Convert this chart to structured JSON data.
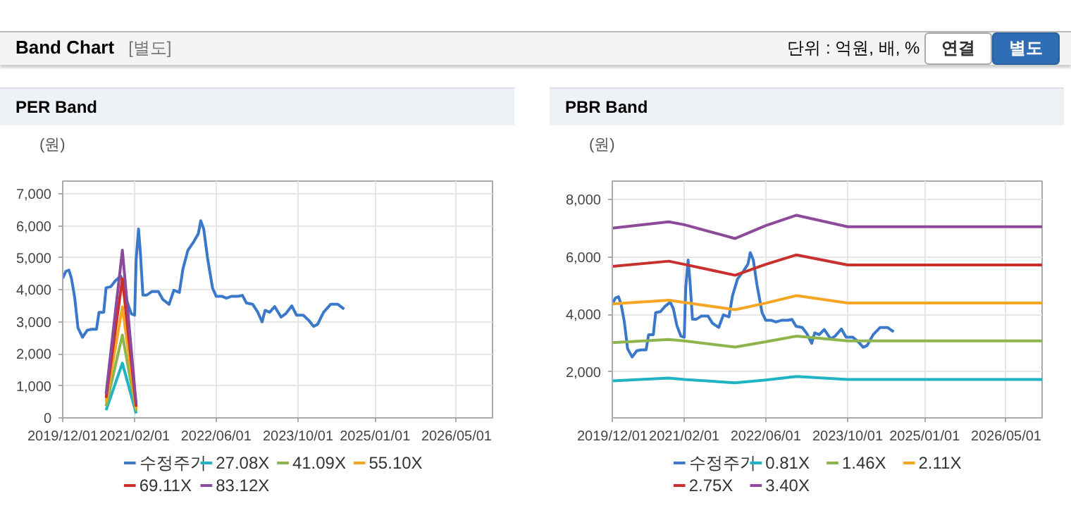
{
  "chart_data": [
    {
      "type": "other",
      "title": "Band Chart",
      "subtitle": "[별도]",
      "annotations": [
        "단위 : 억원, 배, %",
        "연결",
        "별도"
      ]
    },
    {
      "type": "line",
      "title": "PER Band",
      "ylabel": "(원)",
      "legend": "bottom",
      "grid": true,
      "xlim": [
        "2019-12-01",
        "2026-12-01"
      ],
      "xticks": [
        {
          "value": "2019-12-01",
          "label": "2019/12/01"
        },
        {
          "value": "2021-02-01",
          "label": "2021/02/01"
        },
        {
          "value": "2022-06-01",
          "label": "2022/06/01"
        },
        {
          "value": "2023-10-01",
          "label": "2023/10/01"
        },
        {
          "value": "2025-01-01",
          "label": "2025/01/01"
        },
        {
          "value": "2026-05-01",
          "label": "2026/05/01"
        }
      ],
      "ylim": [
        0,
        7400
      ],
      "yticks": [
        0,
        {
          "value": 1000,
          "label": "1,000"
        },
        {
          "value": 2000,
          "label": "2,000"
        },
        {
          "value": 3000,
          "label": "3,000"
        },
        {
          "value": 4000,
          "label": "4,000"
        },
        {
          "value": 5000,
          "label": "5,000"
        },
        {
          "value": 6000,
          "label": "6,000"
        },
        {
          "value": 7000,
          "label": "7,000"
        }
      ],
      "series": [
        {
          "name": "수정주가",
          "color": "#3a78c9",
          "x": [
            "2019-12-01",
            "2019-12-20",
            "2020-01-07",
            "2020-01-22",
            "2020-02-10",
            "2020-03-01",
            "2020-03-28",
            "2020-04-25",
            "2020-05-22",
            "2020-06-19",
            "2020-07-04",
            "2020-08-01",
            "2020-08-15",
            "2020-09-12",
            "2020-10-10",
            "2020-11-10",
            "2020-11-28",
            "2020-12-19",
            "2021-01-12",
            "2021-02-01",
            "2021-02-10",
            "2021-02-24",
            "2021-03-07",
            "2021-03-22",
            "2021-04-15",
            "2021-05-15",
            "2021-06-22",
            "2021-07-19",
            "2021-08-25",
            "2021-09-22",
            "2021-10-25",
            "2021-11-15",
            "2021-12-15",
            "2022-01-19",
            "2022-02-15",
            "2022-03-01",
            "2022-03-19",
            "2022-04-10",
            "2022-05-10",
            "2022-06-01",
            "2022-07-04",
            "2022-08-01",
            "2022-09-01",
            "2022-10-10",
            "2022-11-04",
            "2022-11-28",
            "2023-01-04",
            "2023-02-01",
            "2023-03-01",
            "2023-03-19",
            "2023-04-15",
            "2023-05-15",
            "2023-06-22",
            "2023-07-19",
            "2023-08-25",
            "2023-09-22",
            "2023-11-01",
            "2023-12-07",
            "2024-01-01",
            "2024-01-25",
            "2024-03-01",
            "2024-04-12",
            "2024-05-25",
            "2024-07-01"
          ],
          "values": [
            4360,
            4580,
            4620,
            4360,
            3770,
            2810,
            2520,
            2740,
            2770,
            2770,
            3300,
            3300,
            4065,
            4100,
            4290,
            4430,
            4210,
            3620,
            3250,
            3210,
            4950,
            5900,
            5170,
            3840,
            3840,
            3950,
            3950,
            3700,
            3550,
            3990,
            3920,
            4650,
            5240,
            5510,
            5760,
            6160,
            5900,
            5020,
            4065,
            3800,
            3800,
            3740,
            3800,
            3800,
            3830,
            3590,
            3550,
            3330,
            3000,
            3360,
            3300,
            3480,
            3150,
            3250,
            3500,
            3210,
            3210,
            3030,
            2860,
            2920,
            3300,
            3550,
            3550,
            3400
          ]
        },
        {
          "name": "27.08X",
          "color": "#1fb3c4",
          "x": [
            "2020-08-15",
            "2020-11-20",
            "2021-02-10"
          ],
          "values": [
            240,
            1710,
            140
          ]
        },
        {
          "name": "41.09X",
          "color": "#8db44d",
          "x": [
            "2020-08-15",
            "2020-11-20",
            "2021-02-10"
          ],
          "values": [
            370,
            2590,
            210
          ]
        },
        {
          "name": "55.10X",
          "color": "#f5a623",
          "x": [
            "2020-08-15",
            "2020-11-20",
            "2021-02-10"
          ],
          "values": [
            500,
            3470,
            280
          ]
        },
        {
          "name": "69.11X",
          "color": "#c9302c",
          "x": [
            "2020-08-15",
            "2020-11-20",
            "2021-02-10"
          ],
          "values": [
            620,
            4350,
            350
          ]
        },
        {
          "name": "83.12X",
          "color": "#8e4a9a",
          "x": [
            "2020-08-15",
            "2020-11-20",
            "2021-02-10"
          ],
          "values": [
            750,
            5240,
            420
          ]
        }
      ]
    },
    {
      "type": "line",
      "title": "PBR Band",
      "ylabel": "(원)",
      "legend": "bottom",
      "grid": true,
      "xlim": [
        "2019-12-01",
        "2026-12-01"
      ],
      "xticks": [
        {
          "value": "2019-12-01",
          "label": "2019/12/01"
        },
        {
          "value": "2021-02-01",
          "label": "2021/02/01"
        },
        {
          "value": "2022-06-01",
          "label": "2022/06/01"
        },
        {
          "value": "2023-10-01",
          "label": "2023/10/01"
        },
        {
          "value": "2025-01-01",
          "label": "2025/01/01"
        },
        {
          "value": "2026-05-01",
          "label": "2026/05/01"
        }
      ],
      "ylim": [
        400,
        8650
      ],
      "yticks": [
        {
          "value": 2000,
          "label": "2,000"
        },
        {
          "value": 4000,
          "label": "4,000"
        },
        {
          "value": 6000,
          "label": "6,000"
        },
        {
          "value": 8000,
          "label": "8,000"
        }
      ],
      "series": [
        {
          "name": "수정주가",
          "color": "#3a78c9",
          "x": [
            "2019-12-01",
            "2019-12-20",
            "2020-01-07",
            "2020-01-22",
            "2020-02-10",
            "2020-03-01",
            "2020-03-28",
            "2020-04-25",
            "2020-05-22",
            "2020-06-19",
            "2020-07-04",
            "2020-08-01",
            "2020-08-15",
            "2020-09-12",
            "2020-10-10",
            "2020-11-10",
            "2020-11-28",
            "2020-12-19",
            "2021-01-12",
            "2021-02-01",
            "2021-02-10",
            "2021-02-24",
            "2021-03-07",
            "2021-03-22",
            "2021-04-15",
            "2021-05-15",
            "2021-06-22",
            "2021-07-19",
            "2021-08-25",
            "2021-09-22",
            "2021-10-25",
            "2021-11-15",
            "2021-12-15",
            "2022-01-19",
            "2022-02-15",
            "2022-03-01",
            "2022-03-19",
            "2022-04-10",
            "2022-05-10",
            "2022-06-01",
            "2022-07-04",
            "2022-08-01",
            "2022-09-01",
            "2022-10-10",
            "2022-11-04",
            "2022-11-28",
            "2023-01-04",
            "2023-02-01",
            "2023-03-01",
            "2023-03-19",
            "2023-04-15",
            "2023-05-15",
            "2023-06-22",
            "2023-07-19",
            "2023-08-25",
            "2023-09-22",
            "2023-11-01",
            "2023-12-07",
            "2024-01-01",
            "2024-01-25",
            "2024-03-01",
            "2024-04-12",
            "2024-05-25",
            "2024-07-01"
          ],
          "values": [
            4360,
            4580,
            4620,
            4360,
            3770,
            2810,
            2520,
            2740,
            2770,
            2770,
            3300,
            3300,
            4065,
            4100,
            4290,
            4430,
            4210,
            3620,
            3250,
            3210,
            4950,
            5900,
            5170,
            3840,
            3840,
            3950,
            3950,
            3700,
            3550,
            3990,
            3920,
            4650,
            5240,
            5510,
            5760,
            6160,
            5900,
            5020,
            4065,
            3800,
            3800,
            3740,
            3800,
            3800,
            3830,
            3590,
            3550,
            3330,
            3000,
            3360,
            3300,
            3480,
            3150,
            3250,
            3500,
            3210,
            3210,
            3030,
            2860,
            2920,
            3300,
            3550,
            3550,
            3400
          ]
        },
        {
          "name": "0.81X",
          "color": "#1fb3c4",
          "x": [
            "2019-12-01",
            "2020-11-01",
            "2021-02-01",
            "2021-12-01",
            "2022-06-01",
            "2022-12-01",
            "2023-10-01",
            "2026-12-01"
          ],
          "values": [
            1690,
            1790,
            1740,
            1620,
            1720,
            1840,
            1740,
            1740
          ]
        },
        {
          "name": "1.46X",
          "color": "#8db44d",
          "x": [
            "2019-12-01",
            "2020-11-01",
            "2021-02-01",
            "2021-12-01",
            "2022-06-01",
            "2022-12-01",
            "2023-10-01",
            "2026-12-01"
          ],
          "values": [
            3020,
            3130,
            3080,
            2870,
            3050,
            3250,
            3080,
            3080
          ]
        },
        {
          "name": "2.11X",
          "color": "#f5a623",
          "x": [
            "2019-12-01",
            "2020-11-01",
            "2021-02-01",
            "2021-12-01",
            "2022-06-01",
            "2022-12-01",
            "2023-10-01",
            "2026-12-01"
          ],
          "values": [
            4370,
            4500,
            4420,
            4170,
            4400,
            4660,
            4400,
            4400
          ]
        },
        {
          "name": "2.75X",
          "color": "#c9302c",
          "x": [
            "2019-12-01",
            "2020-11-01",
            "2021-02-01",
            "2021-12-01",
            "2022-06-01",
            "2022-12-01",
            "2023-10-01",
            "2026-12-01"
          ],
          "values": [
            5680,
            5860,
            5750,
            5370,
            5750,
            6080,
            5730,
            5730
          ]
        },
        {
          "name": "3.40X",
          "color": "#8e4a9a",
          "x": [
            "2019-12-01",
            "2020-11-01",
            "2021-02-01",
            "2021-12-01",
            "2022-06-01",
            "2022-12-01",
            "2023-10-01",
            "2026-12-01"
          ],
          "values": [
            7010,
            7230,
            7130,
            6650,
            7100,
            7460,
            7060,
            7060
          ]
        }
      ]
    }
  ]
}
